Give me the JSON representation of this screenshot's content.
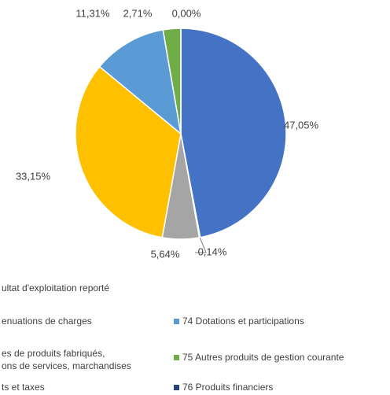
{
  "chart_data": {
    "type": "pie",
    "categories": [
      "ultat d'exploitation reporté",
      "enuations de charges",
      "es de produits fabriqués,\nons de services, marchandises",
      "ts et taxes",
      "74 Dotations et participations",
      "75 Autres produits de gestion courante",
      "76 Produits financiers"
    ],
    "values": [
      47.05,
      0.14,
      5.64,
      33.15,
      11.31,
      2.71,
      0.0
    ],
    "value_labels": [
      "47,05%",
      "0,14%",
      "5,64%",
      "33,15%",
      "11,31%",
      "2,71%",
      "0,00%"
    ],
    "colors": [
      "#4472c4",
      "#ed7d31",
      "#a5a5a5",
      "#ffc000",
      "#5b9bd5",
      "#70ad47",
      "#264478"
    ]
  }
}
